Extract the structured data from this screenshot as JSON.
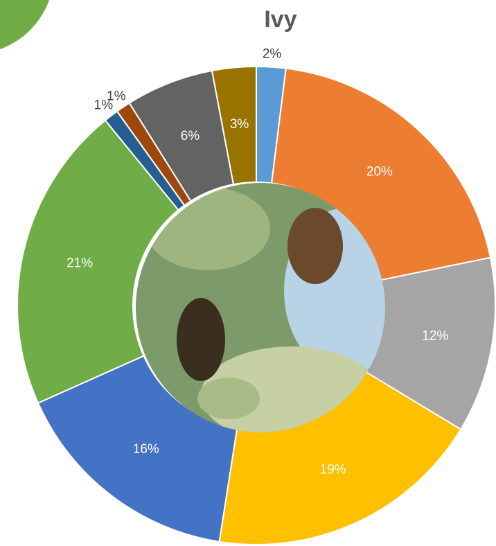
{
  "chart_data": {
    "type": "donut",
    "title": "Ivy",
    "values": [
      2,
      20,
      12,
      19,
      16,
      21,
      1,
      1,
      6,
      3
    ],
    "value_labels": [
      "2%",
      "20%",
      "12%",
      "19%",
      "16%",
      "21%",
      "1%",
      "1%",
      "6%",
      "3%"
    ],
    "colors": [
      "#5b9bd5",
      "#ed7d31",
      "#a5a5a5",
      "#ffc000",
      "#4472c4",
      "#70ad47",
      "#255e91",
      "#9e480e",
      "#636363",
      "#997300"
    ]
  }
}
